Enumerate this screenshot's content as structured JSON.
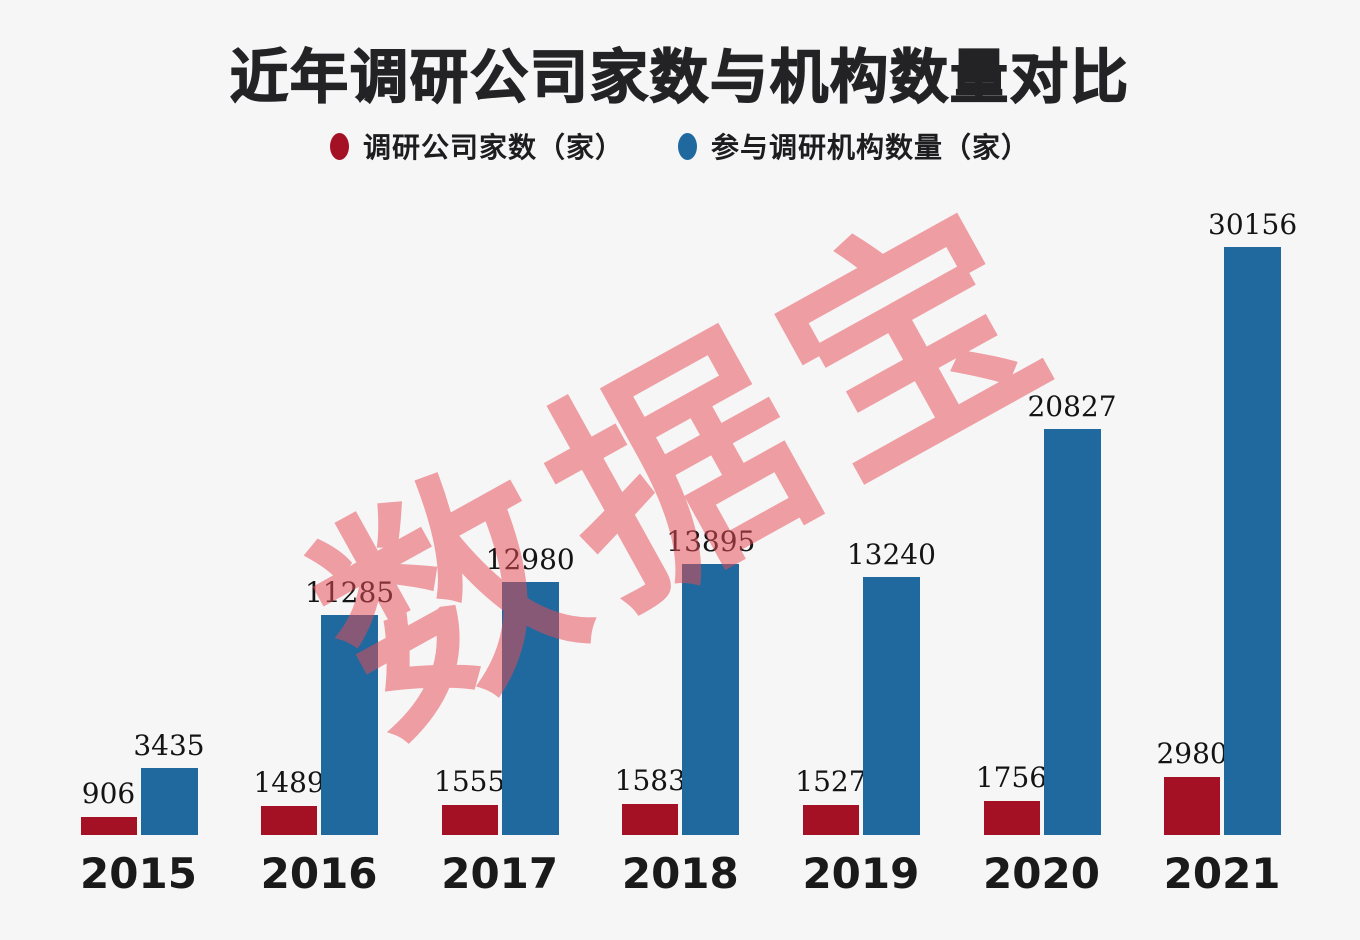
{
  "watermark": {
    "text": "数据宝",
    "color": "#e74c55"
  },
  "chart_data": {
    "type": "bar",
    "title": "近年调研公司家数与机构数量对比",
    "categories": [
      "2015",
      "2016",
      "2017",
      "2018",
      "2019",
      "2020",
      "2021"
    ],
    "series": [
      {
        "name": "调研公司家数（家）",
        "color": "#a51124",
        "values": [
          906,
          1489,
          1555,
          1583,
          1527,
          1756,
          2980
        ]
      },
      {
        "name": "参与调研机构数量（家）",
        "color": "#20699e",
        "values": [
          3435,
          11285,
          12980,
          13895,
          13240,
          20827,
          30156
        ]
      }
    ],
    "xlabel": "",
    "ylabel": "",
    "ylim": [
      0,
      30156
    ],
    "grid": false,
    "axes_visible": false,
    "legend_position": "top",
    "value_labels": true,
    "background": "#f6f6f7",
    "text_color": "#1a1a1a"
  }
}
